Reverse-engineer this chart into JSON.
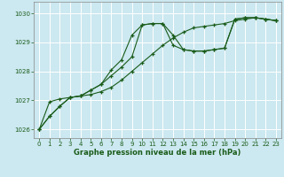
{
  "title": "Graphe pression niveau de la mer (hPa)",
  "bg_color": "#cce8f0",
  "grid_color": "#ffffff",
  "line_color": "#1a5c1a",
  "xlim": [
    -0.5,
    23.5
  ],
  "ylim": [
    1025.7,
    1030.4
  ],
  "yticks": [
    1026,
    1027,
    1028,
    1029,
    1030
  ],
  "xticks": [
    0,
    1,
    2,
    3,
    4,
    5,
    6,
    7,
    8,
    9,
    10,
    11,
    12,
    13,
    14,
    15,
    16,
    17,
    18,
    19,
    20,
    21,
    22,
    23
  ],
  "series": [
    [
      1026.0,
      1026.45,
      1026.8,
      1027.1,
      1027.15,
      1027.35,
      1027.55,
      1027.85,
      1028.15,
      1028.5,
      1029.6,
      1029.65,
      1029.65,
      1028.9,
      1028.75,
      1028.7,
      1028.7,
      1028.75,
      1028.8,
      1029.8,
      1029.85,
      1029.85,
      1029.8,
      1029.75
    ],
    [
      1026.0,
      1026.45,
      1026.8,
      1027.1,
      1027.15,
      1027.35,
      1027.55,
      1028.05,
      1028.4,
      1029.25,
      1029.6,
      1029.65,
      1029.65,
      1029.25,
      1028.75,
      1028.7,
      1028.7,
      1028.75,
      1028.8,
      1029.8,
      1029.85,
      1029.85,
      1029.8,
      1029.75
    ],
    [
      1026.0,
      1026.95,
      1027.05,
      1027.1,
      1027.15,
      1027.2,
      1027.3,
      1027.45,
      1027.7,
      1028.0,
      1028.3,
      1028.6,
      1028.9,
      1029.15,
      1029.35,
      1029.5,
      1029.55,
      1029.6,
      1029.65,
      1029.75,
      1029.8,
      1029.85,
      1029.8,
      1029.75
    ]
  ]
}
